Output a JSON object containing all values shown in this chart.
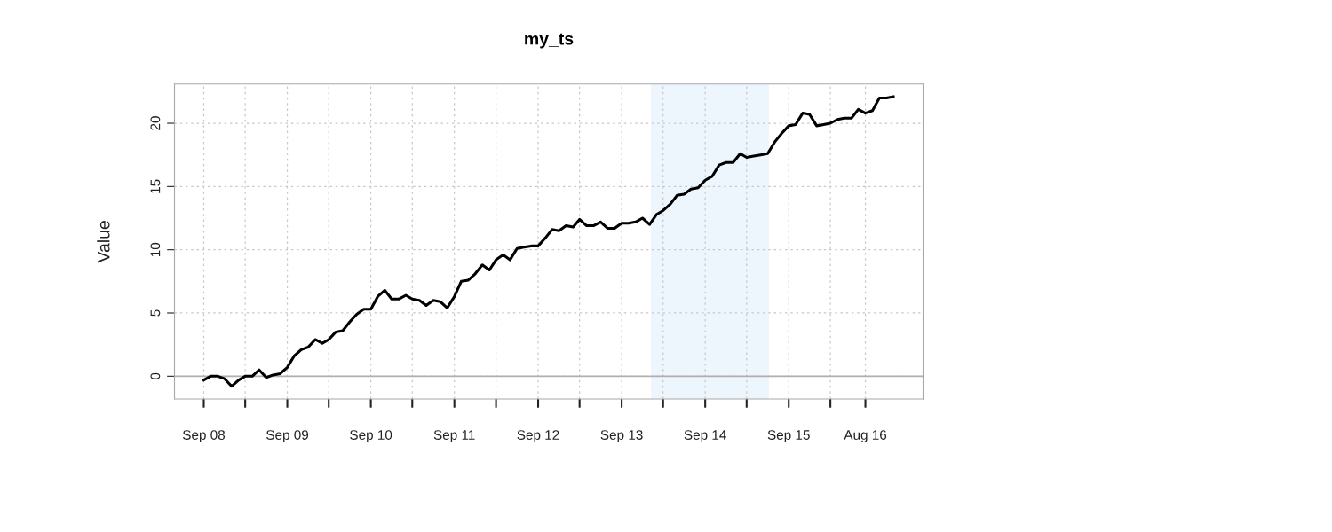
{
  "chart_data": {
    "type": "line",
    "title": "my_ts",
    "ylabel": "Value",
    "x": [
      "2008-09",
      "2008-10",
      "2008-11",
      "2008-12",
      "2009-01",
      "2009-02",
      "2009-03",
      "2009-04",
      "2009-05",
      "2009-06",
      "2009-07",
      "2009-08",
      "2009-09",
      "2009-10",
      "2009-11",
      "2009-12",
      "2010-01",
      "2010-02",
      "2010-03",
      "2010-04",
      "2010-05",
      "2010-06",
      "2010-07",
      "2010-08",
      "2010-09",
      "2010-10",
      "2010-11",
      "2010-12",
      "2011-01",
      "2011-02",
      "2011-03",
      "2011-04",
      "2011-05",
      "2011-06",
      "2011-07",
      "2011-08",
      "2011-09",
      "2011-10",
      "2011-11",
      "2011-12",
      "2012-01",
      "2012-02",
      "2012-03",
      "2012-04",
      "2012-05",
      "2012-06",
      "2012-07",
      "2012-08",
      "2012-09",
      "2012-10",
      "2012-11",
      "2012-12",
      "2013-01",
      "2013-02",
      "2013-03",
      "2013-04",
      "2013-05",
      "2013-06",
      "2013-07",
      "2013-08",
      "2013-09",
      "2013-10",
      "2013-11",
      "2013-12",
      "2014-01",
      "2014-02",
      "2014-03",
      "2014-04",
      "2014-05",
      "2014-06",
      "2014-07",
      "2014-08",
      "2014-09",
      "2014-10",
      "2014-11",
      "2014-12",
      "2015-01",
      "2015-02",
      "2015-03",
      "2015-04",
      "2015-05",
      "2015-06",
      "2015-07",
      "2015-08",
      "2015-09",
      "2015-10",
      "2015-11",
      "2015-12",
      "2016-01",
      "2016-02",
      "2016-03",
      "2016-04",
      "2016-05",
      "2016-06",
      "2016-07",
      "2016-08",
      "2016-09",
      "2016-10",
      "2016-11",
      "2016-12"
    ],
    "series": [
      {
        "color": "#000000",
        "values": [
          -0.3,
          0.0,
          0.0,
          -0.2,
          -0.8,
          -0.3,
          0.0,
          0.0,
          0.5,
          -0.1,
          0.1,
          0.2,
          0.7,
          1.6,
          2.1,
          2.3,
          2.9,
          2.6,
          2.9,
          3.5,
          3.6,
          4.3,
          4.9,
          5.3,
          5.3,
          6.3,
          6.8,
          6.1,
          6.1,
          6.4,
          6.1,
          6.0,
          5.6,
          6.0,
          5.9,
          5.4,
          6.3,
          7.5,
          7.6,
          8.1,
          8.8,
          8.4,
          9.2,
          9.6,
          9.2,
          10.1,
          10.2,
          10.3,
          10.3,
          10.9,
          11.6,
          11.5,
          11.9,
          11.8,
          12.4,
          11.9,
          11.9,
          12.2,
          11.7,
          11.7,
          12.1,
          12.1,
          12.2,
          12.5,
          12.0,
          12.8,
          13.1,
          13.6,
          14.3,
          14.4,
          14.8,
          14.9,
          15.5,
          15.8,
          16.7,
          16.9,
          16.9,
          17.6,
          17.3,
          17.4,
          17.5,
          17.6,
          18.5,
          19.2,
          19.8,
          19.9,
          20.8,
          20.7,
          19.8,
          19.9,
          20.0,
          20.3,
          20.4,
          20.4,
          21.1,
          20.8,
          21.0,
          22.0,
          22.0,
          22.1
        ]
      }
    ],
    "xlim": [
      "2008-04-26",
      "2017-04-10"
    ],
    "xticks": [
      {
        "value": "2008-09",
        "label": "Sep 08"
      },
      {
        "value": "2009-03",
        "label": null
      },
      {
        "value": "2009-09",
        "label": "Sep 09"
      },
      {
        "value": "2010-03",
        "label": null
      },
      {
        "value": "2010-09",
        "label": "Sep 10"
      },
      {
        "value": "2011-03",
        "label": null
      },
      {
        "value": "2011-09",
        "label": "Sep 11"
      },
      {
        "value": "2012-03",
        "label": null
      },
      {
        "value": "2012-09",
        "label": "Sep 12"
      },
      {
        "value": "2013-03",
        "label": null
      },
      {
        "value": "2013-09",
        "label": "Sep 13"
      },
      {
        "value": "2014-03",
        "label": null
      },
      {
        "value": "2014-09",
        "label": "Sep 14"
      },
      {
        "value": "2015-03",
        "label": null
      },
      {
        "value": "2015-09",
        "label": "Sep 15"
      },
      {
        "value": "2016-03",
        "label": null
      },
      {
        "value": "2016-08",
        "label": "Aug 16"
      }
    ],
    "ylim": [
      -1.8,
      23.1
    ],
    "yticks": [
      0,
      5,
      10,
      15,
      20
    ],
    "ref_lines": [
      {
        "axis": "y",
        "value": 0,
        "color": "#b0b0b0",
        "line_style": "solid"
      }
    ],
    "bands": [
      {
        "axis": "x",
        "from": "2014-01-07",
        "to": "2015-06-07",
        "color": "#eef6fd"
      }
    ],
    "grid": true,
    "legend": false,
    "marker": "none",
    "line_style": "solid"
  }
}
